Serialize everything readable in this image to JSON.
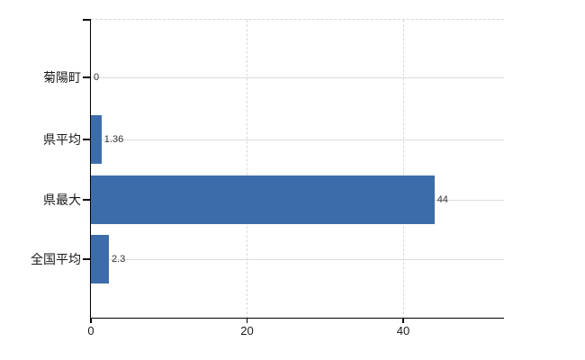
{
  "chart_data": {
    "type": "bar",
    "orientation": "horizontal",
    "title": "",
    "xlabel": "",
    "ylabel": "",
    "categories": [
      "菊陽町",
      "県平均",
      "県最大",
      "全国平均"
    ],
    "values": [
      0,
      1.36,
      44,
      2.3
    ],
    "value_labels": [
      "0",
      "1.36",
      "44",
      "2.3"
    ],
    "x_ticks": [
      0,
      20,
      40
    ],
    "x_tick_labels": [
      "0",
      "20",
      "40"
    ],
    "xlim": [
      0,
      52.9
    ],
    "grid": true,
    "legend": false,
    "colors": {
      "bar": "#3d6cab",
      "h_gridline": "#d9dfd9",
      "v_gridline": "#d6dbd6",
      "top_border": "#d4d7d4",
      "axis": "#000000",
      "background": "#ffffff"
    }
  }
}
